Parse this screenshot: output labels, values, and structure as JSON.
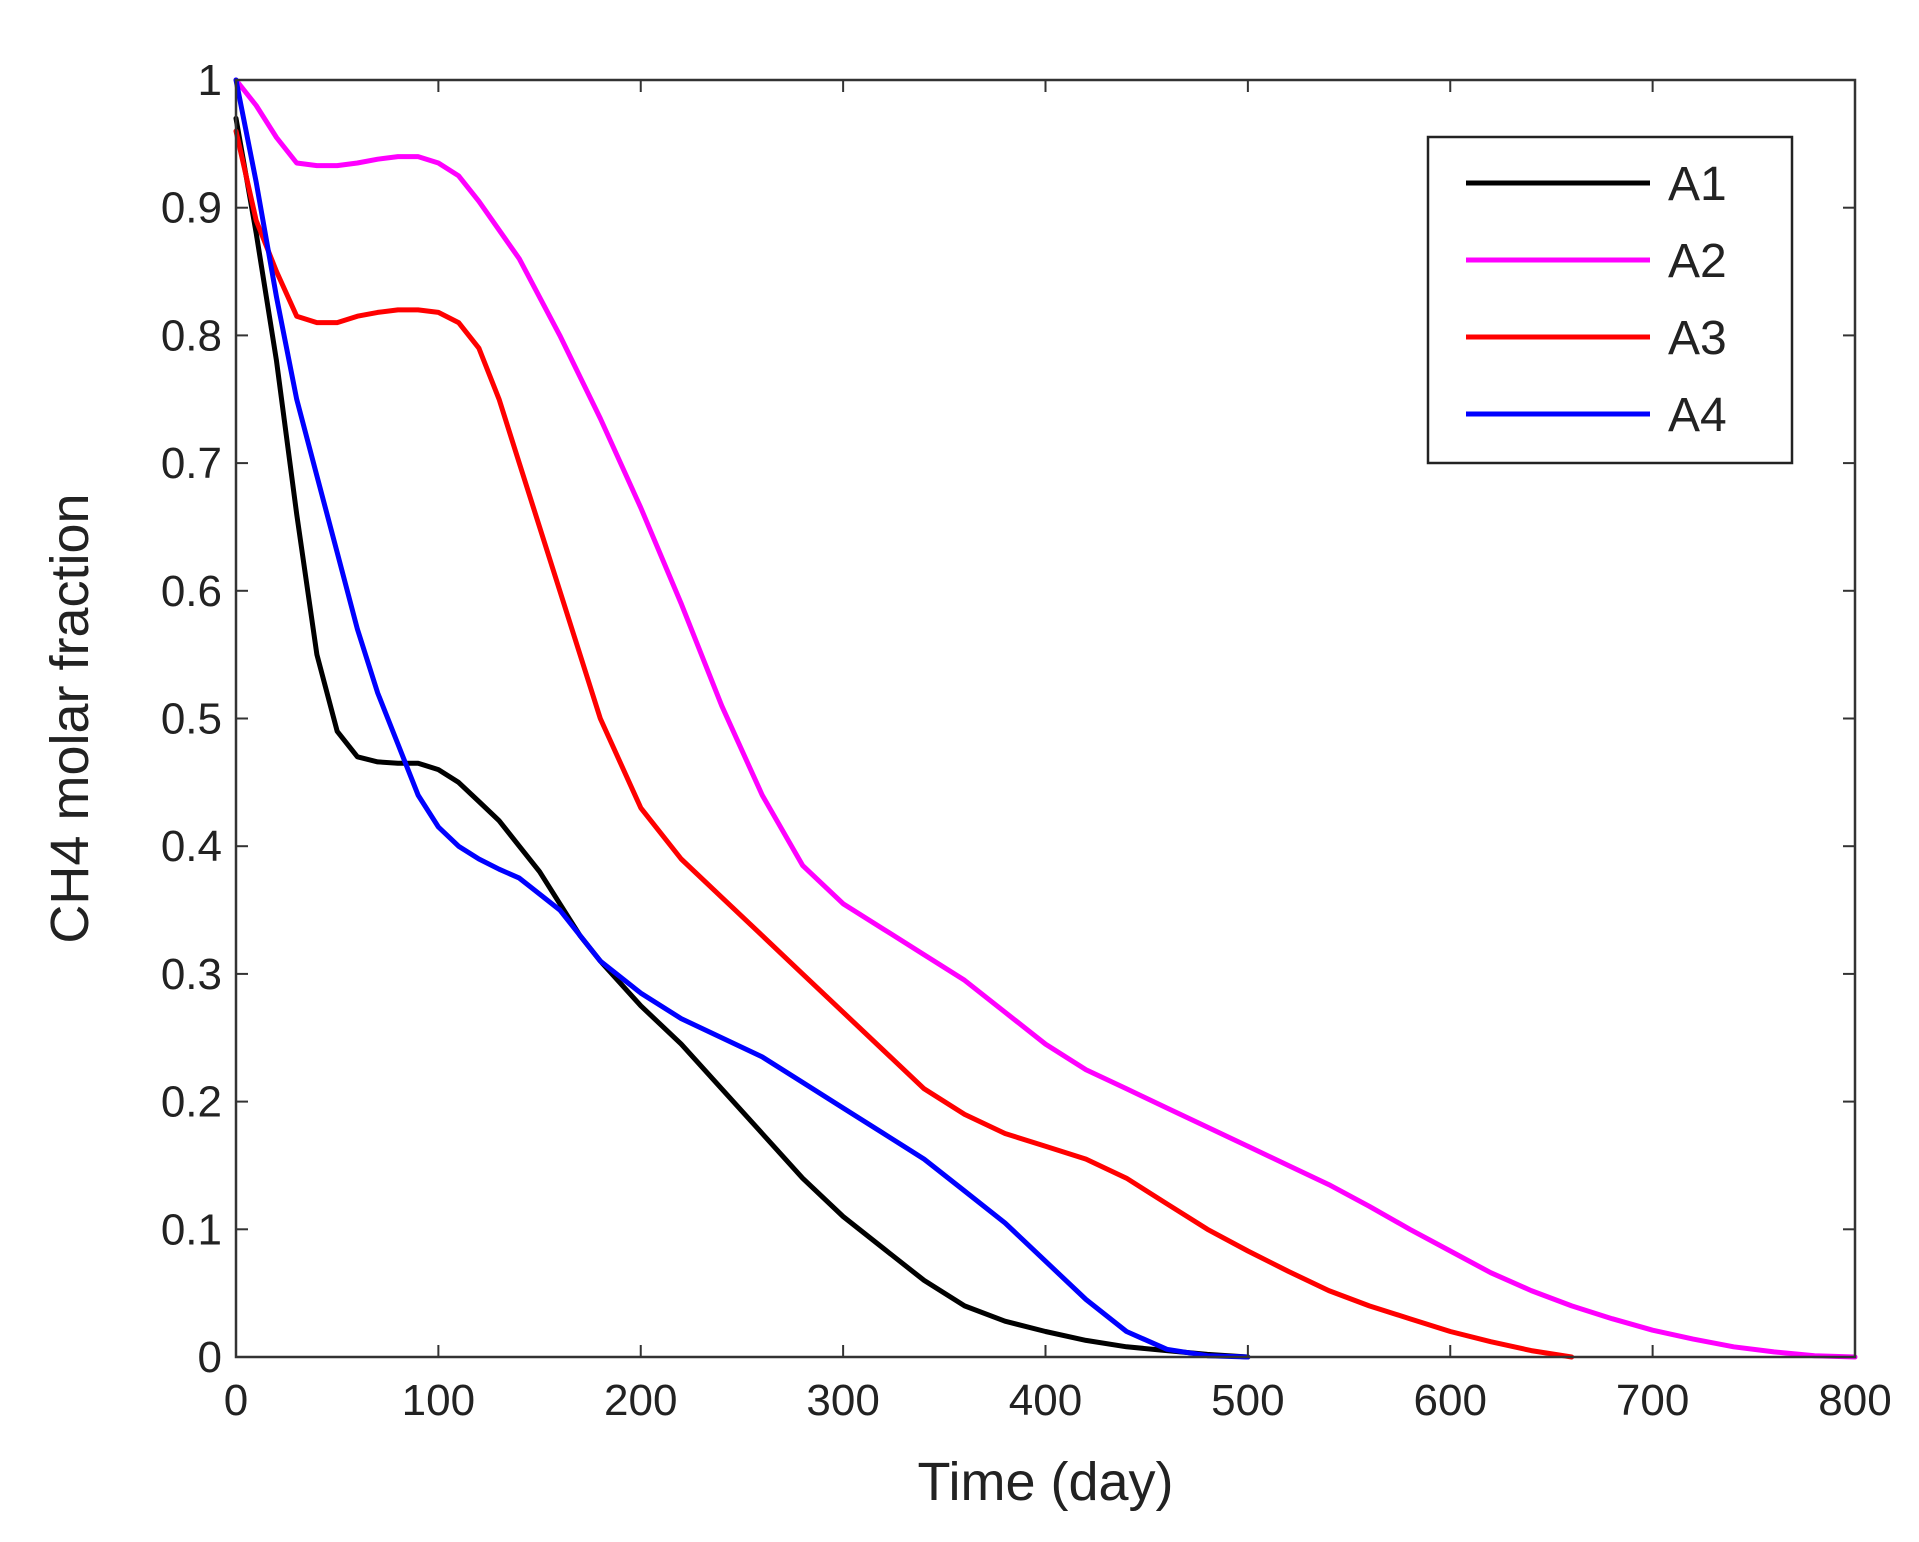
{
  "chart_data": {
    "type": "line",
    "title": "",
    "xlabel": "Time (day)",
    "ylabel": "CH4 molar fraction",
    "xlim": [
      0,
      800
    ],
    "ylim": [
      0,
      1
    ],
    "xticks": [
      0,
      100,
      200,
      300,
      400,
      500,
      600,
      700,
      800
    ],
    "xtick_labels": [
      "0",
      "100",
      "200",
      "300",
      "400",
      "500",
      "600",
      "700",
      "800"
    ],
    "yticks": [
      0,
      0.1,
      0.2,
      0.3,
      0.4,
      0.5,
      0.6,
      0.7,
      0.8,
      0.9,
      1
    ],
    "ytick_labels": [
      "0",
      "0.1",
      "0.2",
      "0.3",
      "0.4",
      "0.5",
      "0.6",
      "0.7",
      "0.8",
      "0.9",
      "1"
    ],
    "grid": false,
    "legend_position": "top-right",
    "series": [
      {
        "name": "A1",
        "color": "#000000",
        "x": [
          0,
          10,
          20,
          30,
          40,
          50,
          60,
          70,
          80,
          90,
          100,
          110,
          120,
          130,
          140,
          150,
          160,
          170,
          180,
          200,
          220,
          240,
          260,
          280,
          300,
          320,
          340,
          360,
          380,
          400,
          420,
          440,
          460,
          480,
          500
        ],
        "y": [
          0.97,
          0.88,
          0.78,
          0.66,
          0.55,
          0.49,
          0.47,
          0.466,
          0.465,
          0.465,
          0.46,
          0.45,
          0.435,
          0.42,
          0.4,
          0.38,
          0.355,
          0.33,
          0.31,
          0.275,
          0.245,
          0.21,
          0.175,
          0.14,
          0.11,
          0.085,
          0.06,
          0.04,
          0.028,
          0.02,
          0.013,
          0.008,
          0.005,
          0.002,
          0.0
        ]
      },
      {
        "name": "A2",
        "color": "#ff00ff",
        "x": [
          0,
          10,
          20,
          30,
          40,
          50,
          60,
          70,
          80,
          90,
          100,
          110,
          120,
          140,
          160,
          180,
          200,
          220,
          240,
          260,
          280,
          300,
          320,
          340,
          360,
          380,
          400,
          420,
          440,
          460,
          480,
          500,
          520,
          540,
          560,
          580,
          600,
          620,
          640,
          660,
          680,
          700,
          720,
          740,
          760,
          780,
          800
        ],
        "y": [
          1.0,
          0.98,
          0.955,
          0.935,
          0.933,
          0.933,
          0.935,
          0.938,
          0.94,
          0.94,
          0.935,
          0.925,
          0.905,
          0.86,
          0.8,
          0.735,
          0.665,
          0.59,
          0.51,
          0.44,
          0.385,
          0.355,
          0.335,
          0.315,
          0.295,
          0.27,
          0.245,
          0.225,
          0.21,
          0.195,
          0.18,
          0.165,
          0.15,
          0.135,
          0.118,
          0.1,
          0.083,
          0.066,
          0.052,
          0.04,
          0.03,
          0.021,
          0.014,
          0.008,
          0.004,
          0.001,
          0.0
        ]
      },
      {
        "name": "A3",
        "color": "#ff0000",
        "x": [
          0,
          10,
          20,
          30,
          40,
          50,
          60,
          70,
          80,
          90,
          100,
          110,
          120,
          130,
          140,
          160,
          180,
          200,
          220,
          240,
          260,
          280,
          300,
          320,
          340,
          360,
          380,
          400,
          420,
          440,
          460,
          480,
          500,
          520,
          540,
          560,
          580,
          600,
          620,
          640,
          660
        ],
        "y": [
          0.96,
          0.89,
          0.85,
          0.815,
          0.81,
          0.81,
          0.815,
          0.818,
          0.82,
          0.82,
          0.818,
          0.81,
          0.79,
          0.75,
          0.7,
          0.6,
          0.5,
          0.43,
          0.39,
          0.36,
          0.33,
          0.3,
          0.27,
          0.24,
          0.21,
          0.19,
          0.175,
          0.165,
          0.155,
          0.14,
          0.12,
          0.1,
          0.083,
          0.067,
          0.052,
          0.04,
          0.03,
          0.02,
          0.012,
          0.005,
          0.0
        ]
      },
      {
        "name": "A4",
        "color": "#0000ff",
        "x": [
          0,
          10,
          20,
          30,
          40,
          50,
          60,
          70,
          80,
          90,
          100,
          110,
          120,
          130,
          140,
          160,
          180,
          200,
          220,
          240,
          260,
          280,
          300,
          320,
          340,
          360,
          380,
          400,
          420,
          440,
          460,
          480,
          500
        ],
        "y": [
          1.0,
          0.92,
          0.83,
          0.75,
          0.69,
          0.63,
          0.57,
          0.52,
          0.48,
          0.44,
          0.415,
          0.4,
          0.39,
          0.382,
          0.375,
          0.35,
          0.31,
          0.285,
          0.265,
          0.25,
          0.235,
          0.215,
          0.195,
          0.175,
          0.155,
          0.13,
          0.105,
          0.075,
          0.045,
          0.02,
          0.006,
          0.001,
          0.0
        ]
      }
    ]
  }
}
